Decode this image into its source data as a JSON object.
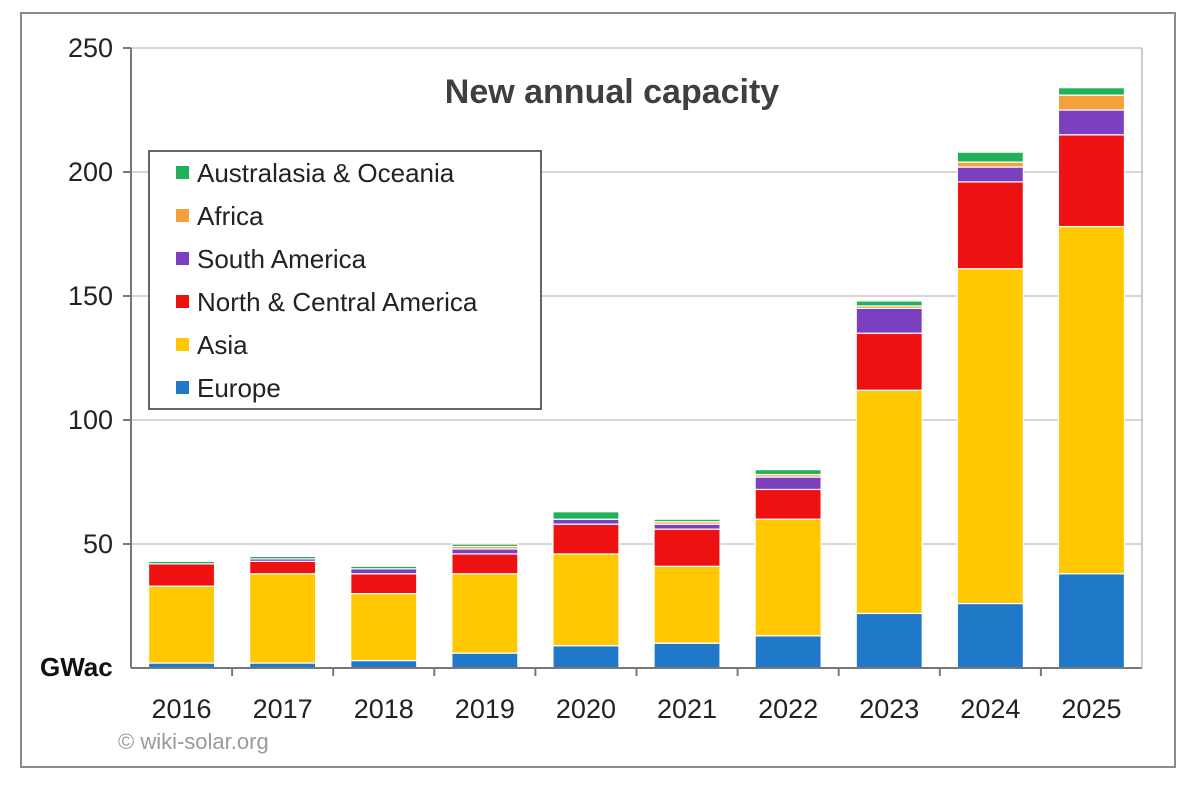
{
  "chart_data": {
    "type": "bar",
    "stacked": true,
    "title": "New annual capacity",
    "ylabel": "GWac",
    "xlabel": "",
    "ylim": [
      0,
      250
    ],
    "yticks": [
      50,
      100,
      150,
      200,
      250
    ],
    "grid": true,
    "legend_position": "upper-left",
    "categories": [
      "2016",
      "2017",
      "2018",
      "2019",
      "2020",
      "2021",
      "2022",
      "2023",
      "2024",
      "2025"
    ],
    "series": [
      {
        "name": "Europe",
        "color": "#1f78c8",
        "values": [
          2,
          2,
          3,
          6,
          9,
          10,
          13,
          22,
          26,
          38
        ]
      },
      {
        "name": "Asia",
        "color": "#ffc800",
        "values": [
          31,
          36,
          27,
          32,
          37,
          31,
          47,
          90,
          135,
          140
        ]
      },
      {
        "name": "North & Central America",
        "color": "#ee1111",
        "values": [
          9,
          5,
          8,
          8,
          12,
          15,
          12,
          23,
          35,
          37
        ]
      },
      {
        "name": "South America",
        "color": "#7b3fbf",
        "values": [
          0,
          1,
          2,
          2,
          2,
          2,
          5,
          10,
          6,
          10
        ]
      },
      {
        "name": "Africa",
        "color": "#f4a13c",
        "values": [
          0,
          0,
          0,
          1,
          0,
          1,
          1,
          1,
          2,
          6
        ]
      },
      {
        "name": "Australasia & Oceania",
        "color": "#1fb25a",
        "values": [
          1,
          1,
          1,
          1,
          3,
          1,
          2,
          2,
          4,
          3
        ]
      }
    ],
    "legend_order": [
      "Australasia & Oceania",
      "Africa",
      "South America",
      "North & Central America",
      "Asia",
      "Europe"
    ],
    "credit": "© wiki-solar.org"
  }
}
